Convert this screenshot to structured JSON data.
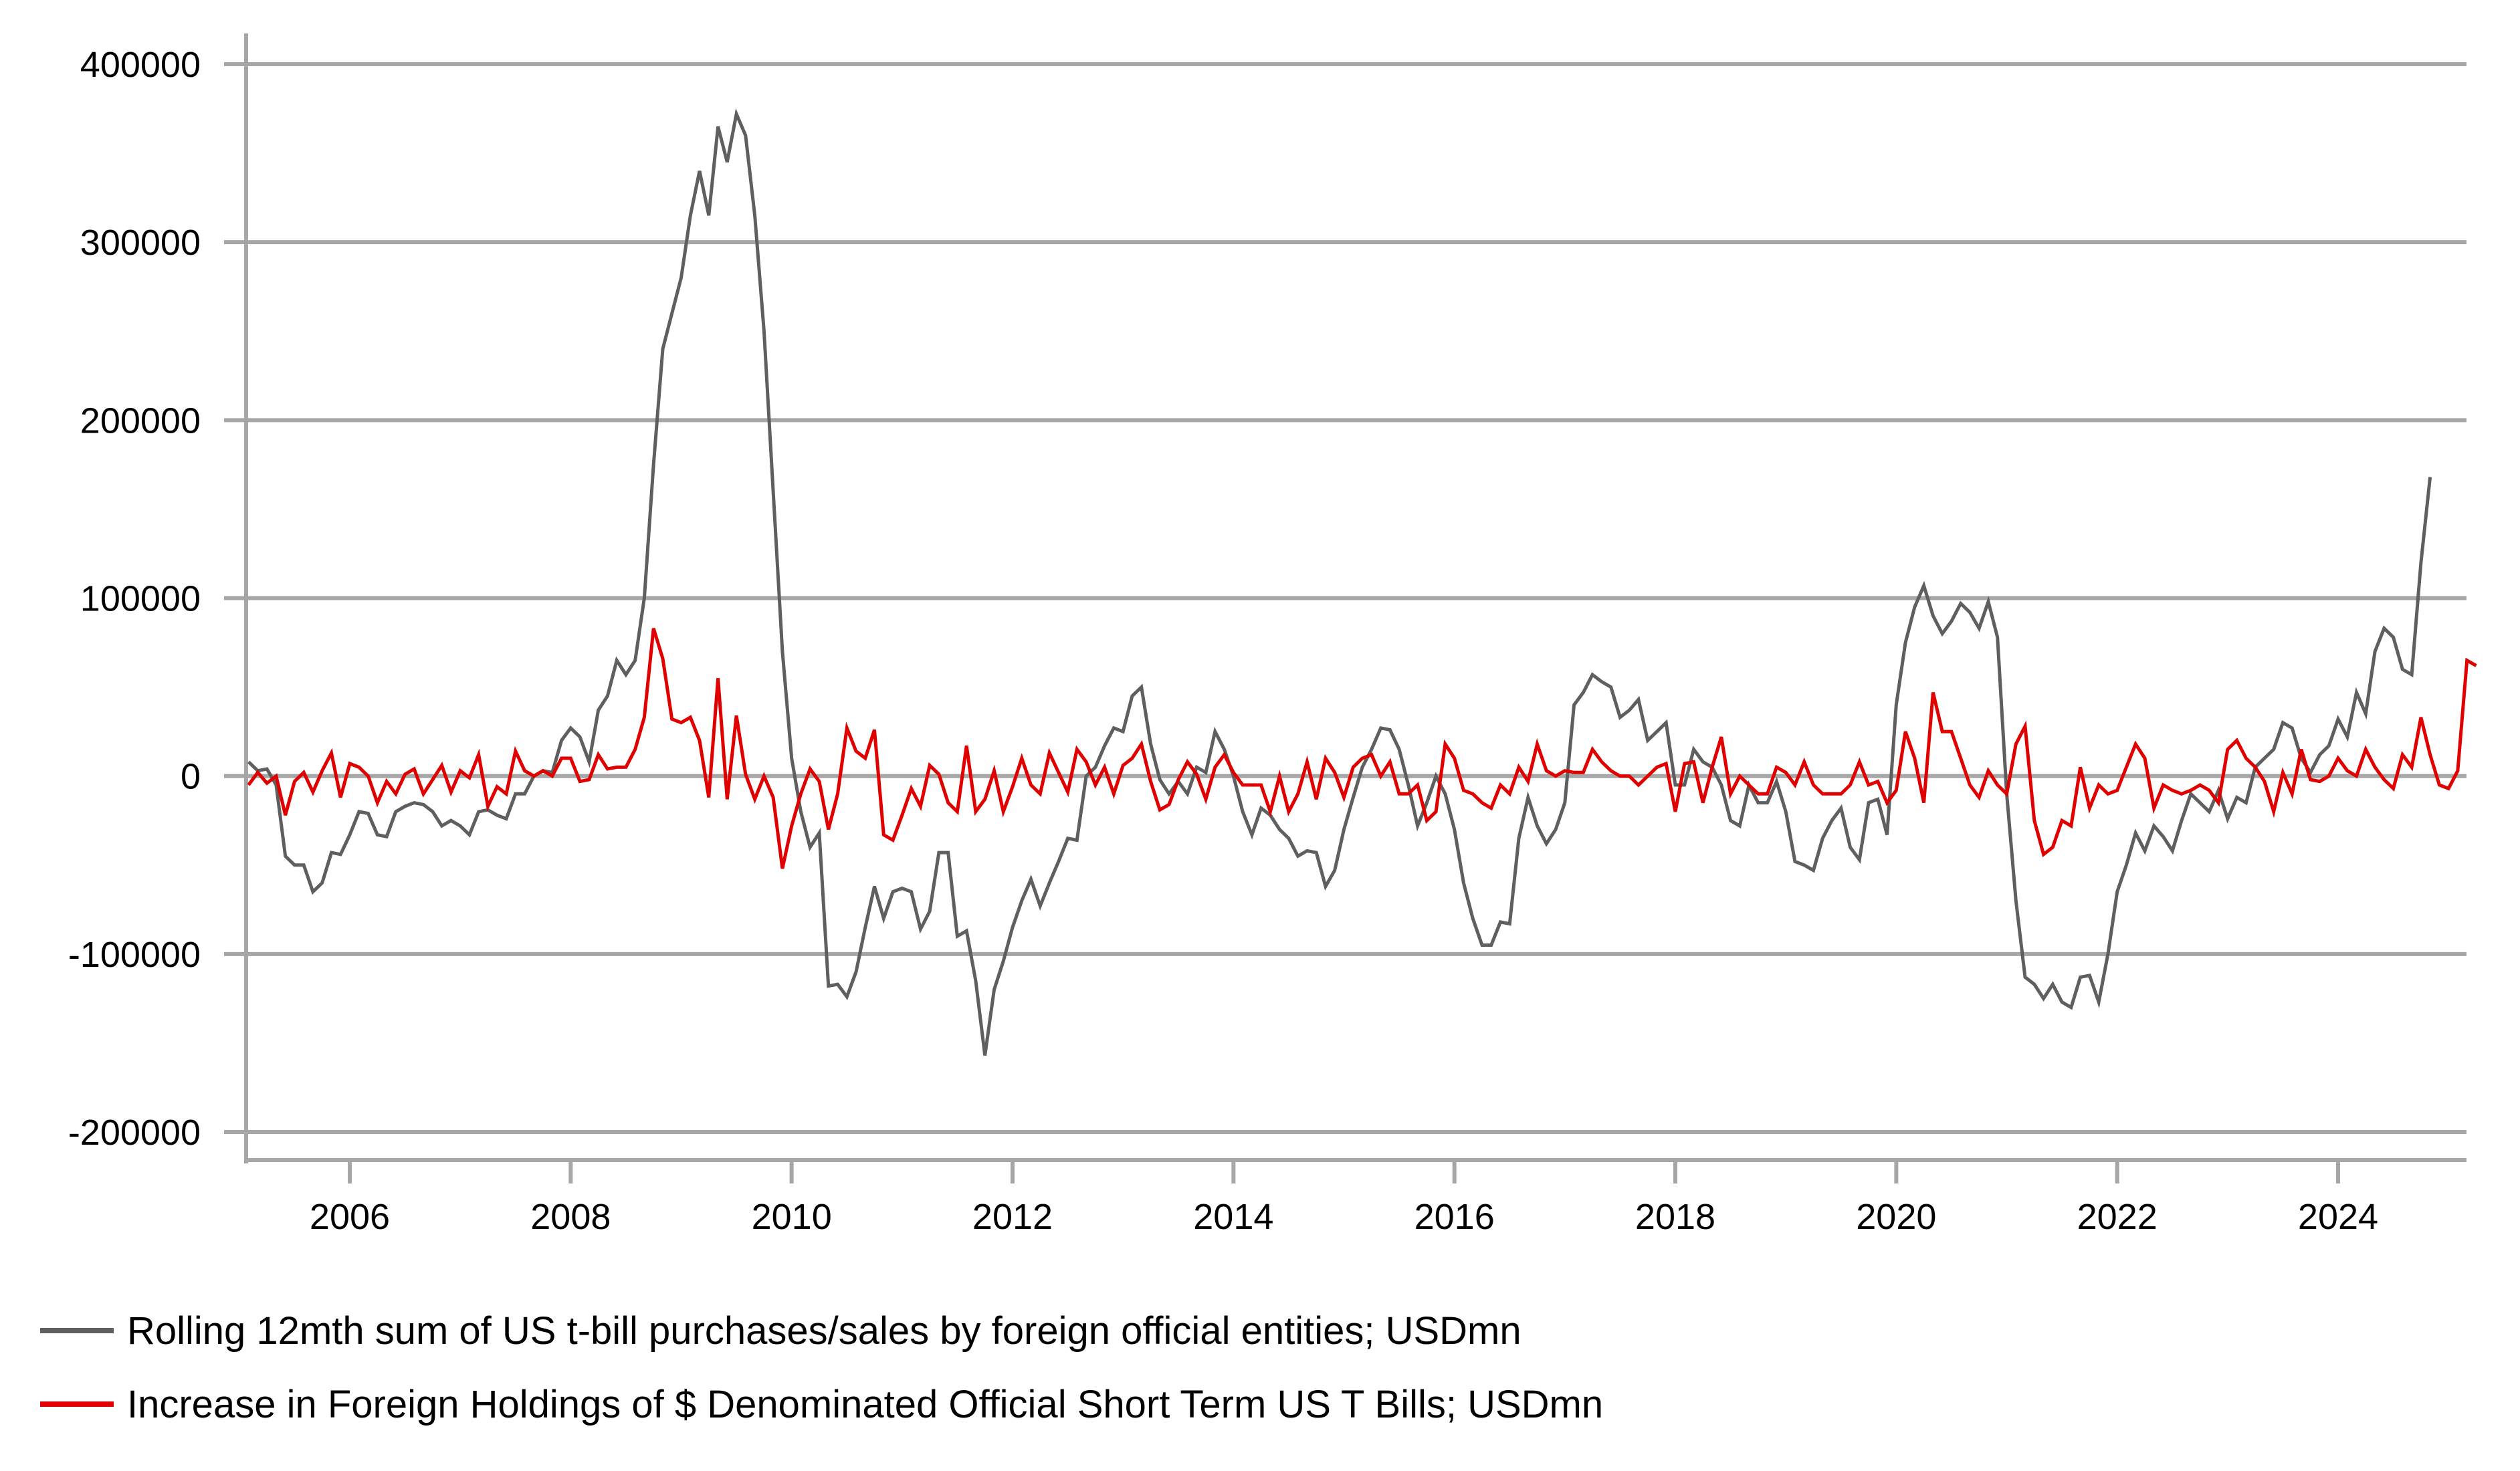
{
  "chart_data": {
    "type": "line",
    "title": "",
    "xlabel": "",
    "ylabel": "",
    "x_start": "2005-02",
    "x_frequency": "monthly",
    "xlim": [
      2005.07,
      2025.16
    ],
    "ylim": [
      -200000,
      400000
    ],
    "x_ticks": [
      "2006",
      "2008",
      "2010",
      "2012",
      "2014",
      "2016",
      "2018",
      "2020",
      "2022",
      "2024"
    ],
    "y_ticks": [
      "400000",
      "300000",
      "200000",
      "100000",
      "0",
      "-100000",
      "-200000"
    ],
    "grid": "horizontal",
    "legend_position": "bottom-left",
    "series": [
      {
        "name": "Rolling 12mth sum of US t-bill purchases/sales by foreign official entities; USDmn",
        "color": "#5f5f5f",
        "values": [
          8000,
          3000,
          4000,
          -5000,
          -45000,
          -50000,
          -50000,
          -65000,
          -60000,
          -43000,
          -44000,
          -33000,
          -20000,
          -21000,
          -33000,
          -34000,
          -20000,
          -17000,
          -15000,
          -16000,
          -20000,
          -28000,
          -25000,
          -28000,
          -33000,
          -20000,
          -19000,
          -22000,
          -24000,
          -10000,
          -10000,
          0,
          3000,
          2000,
          20000,
          27000,
          22000,
          8000,
          37000,
          45000,
          65000,
          57000,
          65000,
          100000,
          175000,
          240000,
          260000,
          280000,
          315000,
          340000,
          315000,
          365000,
          345000,
          372000,
          360000,
          315000,
          250000,
          160000,
          70000,
          10000,
          -20000,
          -40000,
          -32000,
          -118000,
          -117000,
          -124000,
          -110000,
          -85000,
          -62000,
          -80000,
          -65000,
          -63000,
          -65000,
          -86000,
          -76000,
          -43000,
          -43000,
          -90000,
          -87000,
          -115000,
          -157000,
          -120000,
          -104000,
          -85000,
          -70000,
          -58000,
          -73000,
          -60000,
          -48000,
          -35000,
          -36000,
          0,
          5000,
          17000,
          27000,
          25000,
          45000,
          50000,
          18000,
          -2000,
          -10000,
          -3000,
          -10000,
          5000,
          2000,
          25000,
          15000,
          0,
          -20000,
          -33000,
          -18000,
          -22000,
          -30000,
          -35000,
          -45000,
          -42000,
          -43000,
          -62000,
          -53000,
          -30000,
          -12000,
          5000,
          15000,
          27000,
          26000,
          15000,
          -5000,
          -28000,
          -15000,
          0,
          -10000,
          -30000,
          -60000,
          -80000,
          -95000,
          -95000,
          -82000,
          -83000,
          -35000,
          -12000,
          -28000,
          -38000,
          -30000,
          -15000,
          40000,
          47000,
          57000,
          53000,
          50000,
          33000,
          37000,
          43000,
          20000,
          25000,
          30000,
          -5000,
          -5000,
          15000,
          8000,
          5000,
          -5000,
          -25000,
          -28000,
          -5000,
          -15000,
          -15000,
          -3000,
          -20000,
          -48000,
          -50000,
          -53000,
          -35000,
          -25000,
          -18000,
          -40000,
          -47000,
          -15000,
          -13000,
          -33000,
          40000,
          75000,
          95000,
          107000,
          90000,
          80000,
          87000,
          97000,
          92000,
          83000,
          98000,
          78000,
          -10000,
          -70000,
          -113000,
          -117000,
          -125000,
          -117000,
          -127000,
          -130000,
          -113000,
          -112000,
          -127000,
          -100000,
          -65000,
          -50000,
          -32000,
          -42000,
          -28000,
          -34000,
          -42000,
          -25000,
          -10000,
          -15000,
          -20000,
          -8000,
          -24000,
          -12000,
          -15000,
          5000,
          10000,
          15000,
          30000,
          27000,
          10000,
          2000,
          12000,
          17000,
          32000,
          22000,
          47000,
          35000,
          70000,
          83000,
          78000,
          60000,
          57000,
          120000,
          168000
        ]
      },
      {
        "name": "Increase in Foreign Holdings of $ Denominated Official Short Term US T Bills; USDmn",
        "color": "#e00000",
        "values": [
          -5000,
          2000,
          -4000,
          0,
          -22000,
          -3000,
          2000,
          -9000,
          3000,
          13000,
          -12000,
          7000,
          5000,
          0,
          -15000,
          -3000,
          -10000,
          1000,
          4000,
          -10000,
          -2000,
          6000,
          -9000,
          3000,
          -1000,
          12000,
          -17000,
          -6000,
          -10000,
          14000,
          3000,
          0,
          3000,
          0,
          10000,
          10000,
          -3000,
          -2000,
          12000,
          4000,
          5000,
          5000,
          15000,
          33000,
          83000,
          66000,
          32000,
          30000,
          33000,
          20000,
          -12000,
          55000,
          -13000,
          34000,
          1000,
          -13000,
          0,
          -12000,
          -52000,
          -28000,
          -10000,
          4000,
          -3000,
          -30000,
          -10000,
          27000,
          14000,
          10000,
          26000,
          -33000,
          -36000,
          -22000,
          -7000,
          -17000,
          6000,
          1000,
          -15000,
          -20000,
          17000,
          -20000,
          -13000,
          3000,
          -20000,
          -6000,
          10000,
          -5000,
          -10000,
          13000,
          2000,
          -9000,
          15000,
          8000,
          -5000,
          5000,
          -10000,
          6000,
          10000,
          18000,
          -3000,
          -19000,
          -16000,
          -2000,
          8000,
          1000,
          -13000,
          5000,
          12000,
          2000,
          -5000,
          -5000,
          -5000,
          -20000,
          0,
          -20000,
          -10000,
          8000,
          -13000,
          10000,
          2000,
          -12000,
          5000,
          10000,
          12000,
          0,
          8000,
          -10000,
          -10000,
          -5000,
          -25000,
          -20000,
          18000,
          10000,
          -8000,
          -10000,
          -15000,
          -18000,
          -5000,
          -10000,
          5000,
          -3000,
          18000,
          3000,
          0,
          3000,
          2000,
          2000,
          15000,
          8000,
          3000,
          0,
          0,
          -5000,
          0,
          5000,
          7000,
          -20000,
          7000,
          8000,
          -15000,
          5000,
          22000,
          -10000,
          0,
          -5000,
          -10000,
          -10000,
          5000,
          2000,
          -5000,
          8000,
          -5000,
          -10000,
          -10000,
          -10000,
          -5000,
          8000,
          -5000,
          -3000,
          -15000,
          -8000,
          25000,
          10000,
          -15000,
          47000,
          25000,
          25000,
          10000,
          -5000,
          -12000,
          3000,
          -5000,
          -10000,
          18000,
          28000,
          -25000,
          -44000,
          -40000,
          -25000,
          -28000,
          5000,
          -18000,
          -5000,
          -10000,
          -8000,
          5000,
          18000,
          10000,
          -18000,
          -5000,
          -8000,
          -10000,
          -8000,
          -5000,
          -8000,
          -15000,
          15000,
          20000,
          10000,
          5000,
          -3000,
          -20000,
          2000,
          -10000,
          15000,
          -2000,
          -3000,
          0,
          10000,
          3000,
          0,
          15000,
          5000,
          -2000,
          -7000,
          12000,
          5000,
          33000,
          12000,
          -5000,
          -7000,
          3000,
          65000,
          62000
        ]
      }
    ]
  },
  "legend": {
    "items": [
      {
        "label": "Rolling 12mth sum of US t-bill purchases/sales by foreign official entities; USDmn",
        "color": "#5f5f5f"
      },
      {
        "label": "Increase in Foreign Holdings of $ Denominated Official Short Term US T Bills; USDmn",
        "color": "#e00000"
      }
    ]
  }
}
